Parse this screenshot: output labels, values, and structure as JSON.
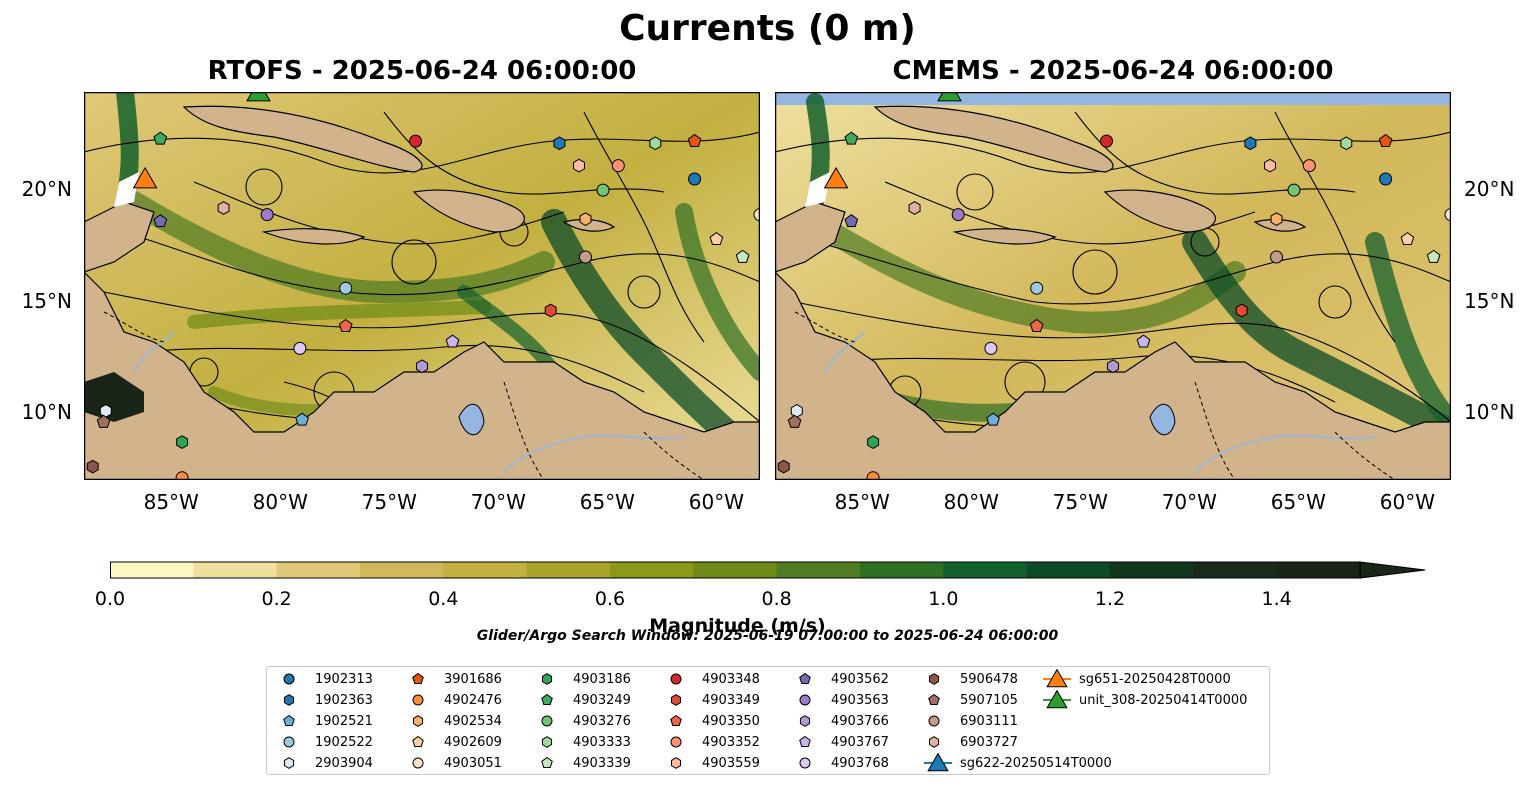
{
  "figure": {
    "suptitle": "Currents (0 m)",
    "search_window": "Glider/Argo Search Window: 2025-06-19 07:00:00 to 2025-06-24 06:00:00",
    "colors": {
      "land": "#d2b48c",
      "water_mask": "#94b6e0",
      "streamline": "#000000",
      "colormap_levels": [
        "#fcf6c0",
        "#efe0a0",
        "#dfc878",
        "#d2b85a",
        "#c2b040",
        "#a8a428",
        "#8c9818",
        "#6f8a17",
        "#4f7b22",
        "#2f6f24",
        "#14602c",
        "#0c4b28",
        "#12371f",
        "#1a2a1a",
        "#1b2419"
      ]
    },
    "panels": [
      {
        "title": "RTOFS - 2025-06-24 06:00:00"
      },
      {
        "title": "CMEMS - 2025-06-24 06:00:00"
      }
    ],
    "x_ticks": [
      "85°W",
      "80°W",
      "75°W",
      "70°W",
      "65°W",
      "60°W"
    ],
    "y_ticks": [
      "20°N",
      "15°N",
      "10°N"
    ],
    "colorbar": {
      "label": "Magnitude (m/s)",
      "ticks": [
        "0.0",
        "0.2",
        "0.4",
        "0.6",
        "0.8",
        "1.0",
        "1.2",
        "1.4"
      ]
    },
    "legend": [
      {
        "name": "1902313",
        "marker": "circle",
        "color": "#1f77b4"
      },
      {
        "name": "1902363",
        "marker": "hexagon",
        "color": "#1f77b4"
      },
      {
        "name": "1902521",
        "marker": "pentagon",
        "color": "#6baed6"
      },
      {
        "name": "1902522",
        "marker": "circle",
        "color": "#9ecae1"
      },
      {
        "name": "2903904",
        "marker": "hexagon",
        "color": "#deebf7"
      },
      {
        "name": "3901686",
        "marker": "pentagon",
        "color": "#e6550d"
      },
      {
        "name": "4902476",
        "marker": "circle",
        "color": "#fd8d3c"
      },
      {
        "name": "4902534",
        "marker": "hexagon",
        "color": "#fdae6b"
      },
      {
        "name": "4902609",
        "marker": "pentagon",
        "color": "#fdd0a2"
      },
      {
        "name": "4903051",
        "marker": "circle",
        "color": "#fde6cf"
      },
      {
        "name": "4903186",
        "marker": "hexagon",
        "color": "#31a354"
      },
      {
        "name": "4903249",
        "marker": "pentagon",
        "color": "#41ab5d"
      },
      {
        "name": "4903276",
        "marker": "circle",
        "color": "#74c476"
      },
      {
        "name": "4903333",
        "marker": "hexagon",
        "color": "#a1d99b"
      },
      {
        "name": "4903339",
        "marker": "pentagon",
        "color": "#c7e9c0"
      },
      {
        "name": "4903348",
        "marker": "circle",
        "color": "#d62728"
      },
      {
        "name": "4903349",
        "marker": "hexagon",
        "color": "#e34a33"
      },
      {
        "name": "4903350",
        "marker": "pentagon",
        "color": "#ef6548"
      },
      {
        "name": "4903352",
        "marker": "circle",
        "color": "#fc9272"
      },
      {
        "name": "4903559",
        "marker": "hexagon",
        "color": "#fcbba1"
      },
      {
        "name": "4903562",
        "marker": "pentagon",
        "color": "#756bb1"
      },
      {
        "name": "4903563",
        "marker": "circle",
        "color": "#9e7bc7"
      },
      {
        "name": "4903766",
        "marker": "hexagon",
        "color": "#b29ad6"
      },
      {
        "name": "4903767",
        "marker": "pentagon",
        "color": "#cbb4f0"
      },
      {
        "name": "4903768",
        "marker": "circle",
        "color": "#dcc9f5"
      },
      {
        "name": "5906478",
        "marker": "hexagon",
        "color": "#8c564b"
      },
      {
        "name": "5907105",
        "marker": "pentagon",
        "color": "#a0705e"
      },
      {
        "name": "6903111",
        "marker": "circle",
        "color": "#c49c8a"
      },
      {
        "name": "6903727",
        "marker": "hexagon",
        "color": "#e0b0a0"
      },
      {
        "name": "sg622-20250514T0000",
        "marker": "triangle",
        "color": "#1f77b4"
      },
      {
        "name": "sg651-20250428T0000",
        "marker": "triangle",
        "color": "#ff7f0e"
      },
      {
        "name": "unit_308-20250414T0000",
        "marker": "triangle",
        "color": "#2ca02c"
      }
    ]
  },
  "chart_data": {
    "type": "map",
    "variable": "Currents (0 m)",
    "units": "m/s",
    "lon_range": [
      -89,
      -58
    ],
    "lat_range": [
      7,
      24.4
    ],
    "color_range": [
      0,
      1.5
    ],
    "x_ticks": [
      -85,
      -80,
      -75,
      -70,
      -65,
      -60
    ],
    "y_ticks": [
      20,
      15,
      10
    ],
    "gliders": [
      {
        "name": "sg651-20250428T0000",
        "lon": -86.2,
        "lat": 20.4
      },
      {
        "name": "unit_308-20250414T0000",
        "lon": -81.0,
        "lat": 24.3
      }
    ],
    "floats": [
      {
        "name": "1902313",
        "lon": -61.0,
        "lat": 20.5
      },
      {
        "name": "1902363",
        "lon": -67.2,
        "lat": 22.1
      },
      {
        "name": "1902521",
        "lon": -79.0,
        "lat": 9.7
      },
      {
        "name": "1902522",
        "lon": -77.0,
        "lat": 15.6
      },
      {
        "name": "2903904",
        "lon": -88.0,
        "lat": 10.1
      },
      {
        "name": "3901686",
        "lon": -61.0,
        "lat": 22.2
      },
      {
        "name": "4902476",
        "lon": -84.5,
        "lat": 7.1
      },
      {
        "name": "4902534",
        "lon": -66.0,
        "lat": 18.7
      },
      {
        "name": "4902609",
        "lon": -60.0,
        "lat": 17.8
      },
      {
        "name": "4903051",
        "lon": -58.0,
        "lat": 18.9
      },
      {
        "name": "4903186",
        "lon": -84.5,
        "lat": 8.7
      },
      {
        "name": "4903249",
        "lon": -85.5,
        "lat": 22.3
      },
      {
        "name": "4903276",
        "lon": -65.2,
        "lat": 20.0
      },
      {
        "name": "4903333",
        "lon": -62.8,
        "lat": 22.1
      },
      {
        "name": "4903339",
        "lon": -58.8,
        "lat": 17.0
      },
      {
        "name": "4903348",
        "lon": -73.8,
        "lat": 22.2
      },
      {
        "name": "4903349",
        "lon": -67.6,
        "lat": 14.6
      },
      {
        "name": "4903350",
        "lon": -77.0,
        "lat": 13.9
      },
      {
        "name": "4903352",
        "lon": -64.5,
        "lat": 21.1
      },
      {
        "name": "4903559",
        "lon": -66.3,
        "lat": 21.1
      },
      {
        "name": "4903562",
        "lon": -85.5,
        "lat": 18.6
      },
      {
        "name": "4903563",
        "lon": -80.6,
        "lat": 18.9
      },
      {
        "name": "4903766",
        "lon": -73.5,
        "lat": 12.1
      },
      {
        "name": "4903767",
        "lon": -72.1,
        "lat": 13.2
      },
      {
        "name": "4903768",
        "lon": -79.1,
        "lat": 12.9
      },
      {
        "name": "5906478",
        "lon": -88.6,
        "lat": 7.6
      },
      {
        "name": "5907105",
        "lon": -88.1,
        "lat": 9.6
      },
      {
        "name": "6903111",
        "lon": -66.0,
        "lat": 17.0
      },
      {
        "name": "6903727",
        "lon": -82.6,
        "lat": 19.2
      }
    ]
  }
}
